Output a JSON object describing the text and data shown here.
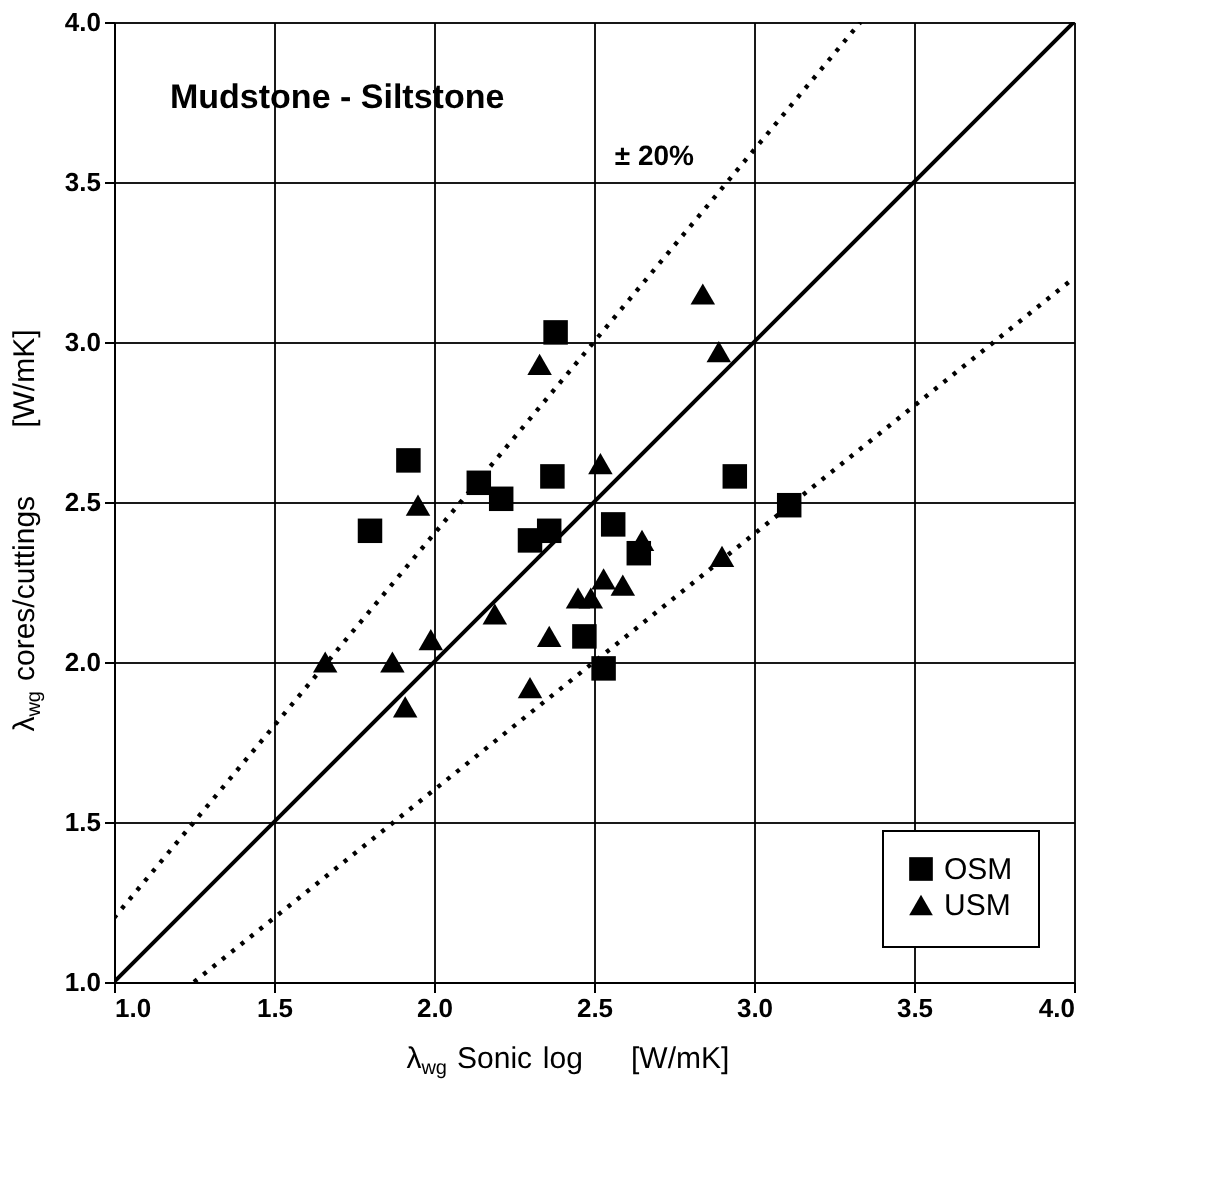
{
  "chart_data": {
    "type": "scatter",
    "xlabel": "λ$_{wg}$ Sonic log    [W/mK]",
    "ylabel": "λ$_{wg}$ cores/cuttings    [W/mK]",
    "xlim": [
      1.0,
      4.0
    ],
    "ylim": [
      1.0,
      4.0
    ],
    "xticks": [
      {
        "value": 1,
        "label": "1.0"
      },
      {
        "value": 1.5,
        "label": "1.5"
      },
      {
        "value": 2,
        "label": "2.0"
      },
      {
        "value": 2.5,
        "label": "2.5"
      },
      {
        "value": 3,
        "label": "3.0"
      },
      {
        "value": 3.5,
        "label": "3.5"
      },
      {
        "value": 4,
        "label": "4.0"
      }
    ],
    "yticks": [
      {
        "value": 1,
        "label": "1.0"
      },
      {
        "value": 1.5,
        "label": "1.5"
      },
      {
        "value": 2,
        "label": "2.0"
      },
      {
        "value": 2.5,
        "label": "2.5"
      },
      {
        "value": 3,
        "label": "3.0"
      },
      {
        "value": 3.5,
        "label": "3.5"
      },
      {
        "value": 4,
        "label": "4.0"
      }
    ],
    "grid": true,
    "legend": "bottom right",
    "annotations": [
      "Mudstone - Siltstone",
      {
        "text": "± 20%",
        "x": 2.95,
        "y": 3.54
      }
    ],
    "series": [
      {
        "name": "OSM",
        "color": "#000000",
        "marker": "square",
        "x": [
          2.38,
          1.92,
          2.14,
          2.21,
          2.37,
          1.8,
          2.3,
          2.36,
          2.94,
          3.11,
          2.56,
          2.64,
          2.47,
          2.53
        ],
        "values": [
          3.03,
          2.63,
          2.56,
          2.51,
          2.58,
          2.41,
          2.38,
          2.41,
          2.58,
          2.49,
          2.43,
          2.34,
          2.08,
          1.98
        ]
      },
      {
        "name": "USM",
        "color": "#000000",
        "marker": "triangle",
        "x": [
          2.33,
          1.95,
          2.19,
          2.52,
          2.84,
          2.89,
          2.65,
          2.9,
          2.53,
          2.59,
          2.45,
          2.49,
          2.36,
          2.3,
          1.66,
          1.87,
          1.91,
          1.99
        ],
        "values": [
          2.93,
          2.49,
          2.15,
          2.62,
          3.15,
          2.97,
          2.38,
          2.33,
          2.26,
          2.24,
          2.2,
          2.2,
          2.08,
          1.92,
          2.0,
          2.0,
          1.86,
          2.07
        ]
      },
      {
        "type": "line",
        "color": "#000000",
        "line_style": "solid",
        "x": [
          1.0,
          4.0
        ],
        "values": [
          1.0,
          4.0
        ]
      },
      {
        "type": "line",
        "color": "#000000",
        "line_style": "dotted",
        "x": [
          1.0,
          3.333
        ],
        "values": [
          1.2,
          4.0
        ]
      },
      {
        "type": "line",
        "color": "#000000",
        "line_style": "dotted",
        "x": [
          1.25,
          4.0
        ],
        "values": [
          1.0,
          3.2
        ]
      }
    ]
  }
}
